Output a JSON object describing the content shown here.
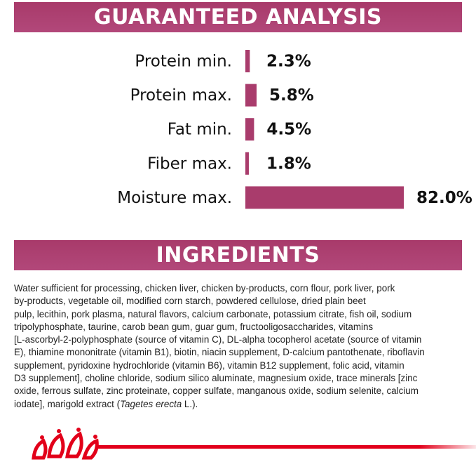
{
  "chart_data": {
    "type": "bar",
    "orientation": "horizontal",
    "title": "GUARANTEED ANALYSIS",
    "categories": [
      "Protein min.",
      "Protein max.",
      "Fat min.",
      "Fiber max.",
      "Moisture max."
    ],
    "values": [
      2.3,
      5.8,
      4.5,
      1.8,
      82.0
    ],
    "value_labels": [
      "2.3%",
      "5.8%",
      "4.5%",
      "1.8%",
      "82.0%"
    ],
    "color": "#a93c6c"
  },
  "ingredients": {
    "title": "INGREDIENTS",
    "lines": [
      "Water sufficient for processing, chicken liver, chicken by-products, corn flour, pork liver, pork",
      "by-products, vegetable oil, modified corn starch, powdered cellulose, dried plain beet",
      "pulp, lecithin, pork plasma, natural flavors, calcium carbonate, potassium citrate, fish oil, sodium",
      "tripolyphosphate, taurine, carob bean gum, guar gum, fructooligosaccharides, vitamins",
      "[L-ascorbyl-2-polyphosphate (source of vitamin C), DL-alpha tocopherol acetate (source of vitamin",
      "E), thiamine mononitrate (vitamin B1), biotin, niacin supplement, D-calcium pantothenate, riboflavin",
      "supplement, pyridoxine hydrochloride (vitamin B6), vitamin B12 supplement, folic acid, vitamin",
      "D3 supplement], choline chloride, sodium silico aluminate, magnesium oxide, trace minerals [zinc",
      "oxide, ferrous sulfate, zinc proteinate, copper sulfate, manganous oxide, sodium selenite, calcium"
    ],
    "last_line": [
      "iodate], marigold extract (",
      "Tagetes erecta",
      " L.)."
    ]
  }
}
